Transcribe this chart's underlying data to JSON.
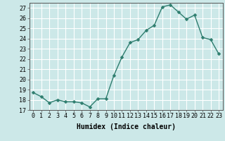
{
  "x": [
    0,
    1,
    2,
    3,
    4,
    5,
    6,
    7,
    8,
    9,
    10,
    11,
    12,
    13,
    14,
    15,
    16,
    17,
    18,
    19,
    20,
    21,
    22,
    23
  ],
  "y": [
    18.7,
    18.3,
    17.7,
    18.0,
    17.8,
    17.8,
    17.7,
    17.3,
    18.1,
    18.1,
    20.4,
    22.2,
    23.6,
    23.9,
    24.8,
    25.3,
    27.1,
    27.3,
    26.6,
    25.9,
    26.3,
    24.1,
    23.9,
    22.5
  ],
  "line_color": "#2e7d6e",
  "marker_color": "#2e7d6e",
  "bg_color": "#cce8e8",
  "grid_color": "#ffffff",
  "xlabel": "Humidex (Indice chaleur)",
  "ylim": [
    17,
    27.5
  ],
  "xlim": [
    -0.5,
    23.5
  ],
  "yticks": [
    17,
    18,
    19,
    20,
    21,
    22,
    23,
    24,
    25,
    26,
    27
  ],
  "xticks": [
    0,
    1,
    2,
    3,
    4,
    5,
    6,
    7,
    8,
    9,
    10,
    11,
    12,
    13,
    14,
    15,
    16,
    17,
    18,
    19,
    20,
    21,
    22,
    23
  ],
  "fontsize_label": 7,
  "fontsize_tick": 6,
  "marker_size": 2.5,
  "line_width": 1.0
}
